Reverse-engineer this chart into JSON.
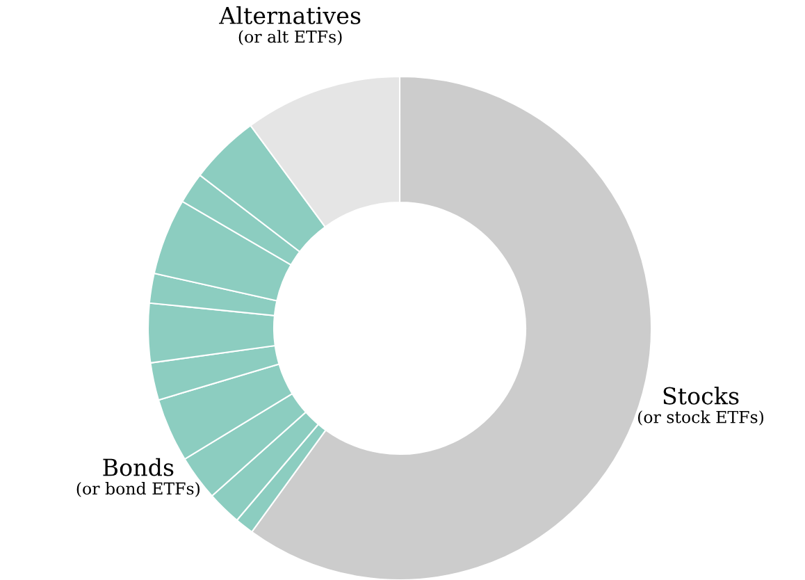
{
  "chart_data": {
    "type": "donut",
    "categories": [
      "Stocks\n(or stock ETFs)",
      null,
      null,
      null,
      null,
      null,
      null,
      null,
      null,
      null,
      null,
      "Alternatives\n(or alt ETFs)"
    ],
    "values": [
      60.0,
      1.2,
      2.2,
      2.9,
      4.1,
      2.4,
      3.8,
      1.9,
      4.9,
      2.0,
      4.5,
      10.1
    ],
    "colors": [
      "#cccccc",
      "#8ccdc0",
      "#8ccdc0",
      "#8ccdc0",
      "#8ccdc0",
      "#8ccdc0",
      "#8ccdc0",
      "#8ccdc0",
      "#8ccdc0",
      "#8ccdc0",
      "#8ccdc0",
      "#e5e5e5"
    ],
    "annotations": [
      "Bonds\n(or bond ETFs)"
    ]
  }
}
